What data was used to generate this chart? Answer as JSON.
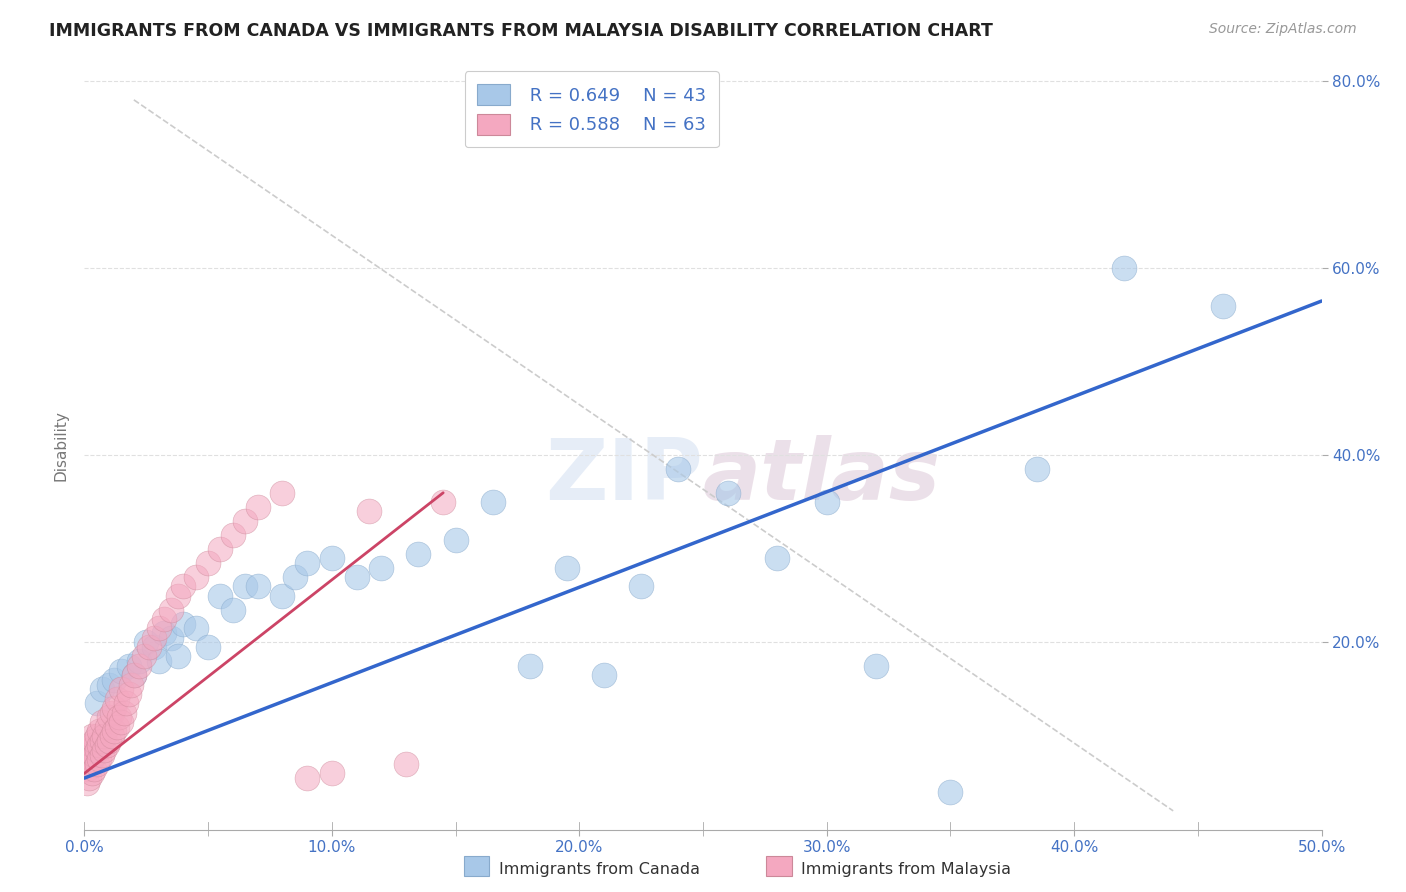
{
  "title": "IMMIGRANTS FROM CANADA VS IMMIGRANTS FROM MALAYSIA DISABILITY CORRELATION CHART",
  "source_text": "Source: ZipAtlas.com",
  "ylabel": "Disability",
  "xlim": [
    0.0,
    0.5
  ],
  "ylim": [
    0.0,
    0.82
  ],
  "xtick_labels": [
    "0.0%",
    "",
    "10.0%",
    "",
    "20.0%",
    "",
    "30.0%",
    "",
    "40.0%",
    "",
    "50.0%"
  ],
  "xtick_vals": [
    0.0,
    0.05,
    0.1,
    0.15,
    0.2,
    0.25,
    0.3,
    0.35,
    0.4,
    0.45,
    0.5
  ],
  "ytick_labels": [
    "20.0%",
    "40.0%",
    "60.0%",
    "80.0%"
  ],
  "ytick_vals": [
    0.2,
    0.4,
    0.6,
    0.8
  ],
  "watermark": "ZIPatlas",
  "legend_r1": "R = 0.649",
  "legend_n1": "N = 43",
  "legend_r2": "R = 0.588",
  "legend_n2": "N = 63",
  "color_canada": "#a8c8e8",
  "color_malaysia": "#f4a8c0",
  "line_color_canada": "#3366cc",
  "line_color_malaysia": "#cc4466",
  "title_color": "#222222",
  "axis_label_color": "#777777",
  "legend_text_color": "#4472c4",
  "tick_color": "#4472c4",
  "background_color": "#ffffff",
  "grid_color": "#e0e0e0",
  "ref_line_color": "#cccccc",
  "canada_scatter_x": [
    0.005,
    0.007,
    0.01,
    0.012,
    0.015,
    0.018,
    0.02,
    0.022,
    0.025,
    0.028,
    0.03,
    0.032,
    0.035,
    0.038,
    0.04,
    0.045,
    0.05,
    0.055,
    0.06,
    0.065,
    0.07,
    0.08,
    0.085,
    0.09,
    0.1,
    0.11,
    0.12,
    0.135,
    0.15,
    0.165,
    0.18,
    0.195,
    0.21,
    0.225,
    0.24,
    0.26,
    0.28,
    0.3,
    0.32,
    0.35,
    0.385,
    0.42,
    0.46
  ],
  "canada_scatter_y": [
    0.135,
    0.15,
    0.155,
    0.16,
    0.17,
    0.175,
    0.165,
    0.18,
    0.2,
    0.195,
    0.18,
    0.21,
    0.205,
    0.185,
    0.22,
    0.215,
    0.195,
    0.25,
    0.235,
    0.26,
    0.26,
    0.25,
    0.27,
    0.285,
    0.29,
    0.27,
    0.28,
    0.295,
    0.31,
    0.35,
    0.175,
    0.28,
    0.165,
    0.26,
    0.385,
    0.36,
    0.29,
    0.35,
    0.175,
    0.04,
    0.385,
    0.6,
    0.56
  ],
  "malaysia_scatter_x": [
    0.001,
    0.001,
    0.001,
    0.002,
    0.002,
    0.002,
    0.003,
    0.003,
    0.003,
    0.003,
    0.004,
    0.004,
    0.004,
    0.005,
    0.005,
    0.005,
    0.006,
    0.006,
    0.006,
    0.007,
    0.007,
    0.007,
    0.008,
    0.008,
    0.009,
    0.009,
    0.01,
    0.01,
    0.011,
    0.011,
    0.012,
    0.012,
    0.013,
    0.013,
    0.014,
    0.015,
    0.015,
    0.016,
    0.017,
    0.018,
    0.019,
    0.02,
    0.022,
    0.024,
    0.026,
    0.028,
    0.03,
    0.032,
    0.035,
    0.038,
    0.04,
    0.045,
    0.05,
    0.055,
    0.06,
    0.065,
    0.07,
    0.08,
    0.09,
    0.1,
    0.115,
    0.13,
    0.145
  ],
  "malaysia_scatter_y": [
    0.05,
    0.065,
    0.08,
    0.055,
    0.07,
    0.085,
    0.06,
    0.075,
    0.09,
    0.1,
    0.065,
    0.08,
    0.095,
    0.07,
    0.085,
    0.1,
    0.075,
    0.09,
    0.105,
    0.08,
    0.095,
    0.115,
    0.085,
    0.1,
    0.09,
    0.11,
    0.095,
    0.12,
    0.1,
    0.125,
    0.105,
    0.13,
    0.11,
    0.14,
    0.12,
    0.115,
    0.15,
    0.125,
    0.135,
    0.145,
    0.155,
    0.165,
    0.175,
    0.185,
    0.195,
    0.205,
    0.215,
    0.225,
    0.235,
    0.25,
    0.26,
    0.27,
    0.285,
    0.3,
    0.315,
    0.33,
    0.345,
    0.36,
    0.055,
    0.06,
    0.34,
    0.07,
    0.35
  ],
  "canada_line_x": [
    0.0,
    0.5
  ],
  "canada_line_y": [
    0.055,
    0.565
  ],
  "malaysia_line_x": [
    0.0,
    0.145
  ],
  "malaysia_line_y": [
    0.06,
    0.36
  ],
  "ref_line_x": [
    0.02,
    0.44
  ],
  "ref_line_y": [
    0.78,
    0.02
  ]
}
